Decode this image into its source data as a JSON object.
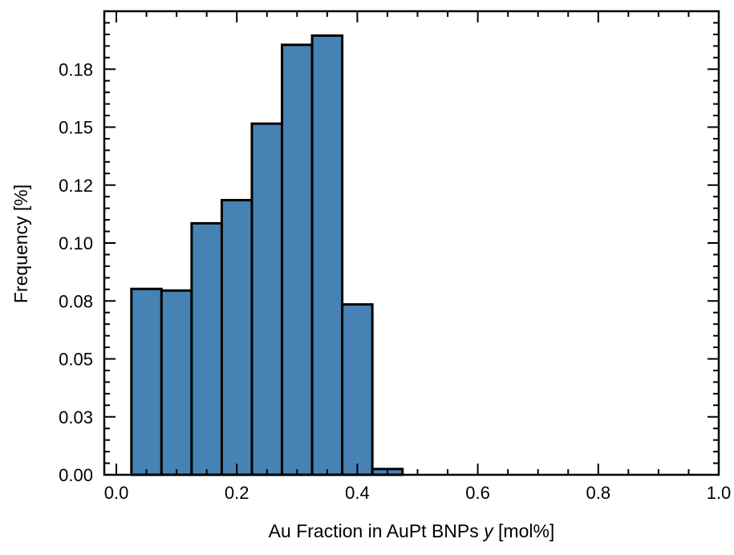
{
  "chart_data": {
    "type": "bar",
    "xlabel": "Au Fraction in AuPt BNPs",
    "xlabel_italic": "y",
    "xlabel_unit": "[mol%]",
    "ylabel": "Frequency [%]",
    "xlim": [
      -0.02,
      1.0
    ],
    "ylim": [
      0.0,
      0.2
    ],
    "x_ticks": [
      0.0,
      0.2,
      0.4,
      0.6,
      0.8,
      1.0
    ],
    "x_tick_labels": [
      "0.0",
      "0.2",
      "0.4",
      "0.6",
      "0.8",
      "1.0"
    ],
    "y_ticks": [
      0.0,
      0.025,
      0.05,
      0.075,
      0.1,
      0.125,
      0.15,
      0.175
    ],
    "y_tick_labels": [
      "0.00",
      "0.03",
      "0.05",
      "0.08",
      "0.10",
      "0.12",
      "0.15",
      "0.18"
    ],
    "bin_width": 0.05,
    "bin_starts": [
      0.025,
      0.075,
      0.125,
      0.175,
      0.225,
      0.275,
      0.325,
      0.375,
      0.425,
      0.475,
      0.525,
      0.575,
      0.625,
      0.675,
      0.725,
      0.775,
      0.825,
      0.875,
      0.925
    ],
    "values": [
      0.0802,
      0.0795,
      0.1085,
      0.1185,
      0.1515,
      0.1855,
      0.1895,
      0.0735,
      0.0025,
      0,
      0,
      0,
      0,
      0,
      0,
      0,
      0,
      0,
      0
    ],
    "bar_color": "#4682b4",
    "edge_color": "#000000",
    "grid": false
  }
}
